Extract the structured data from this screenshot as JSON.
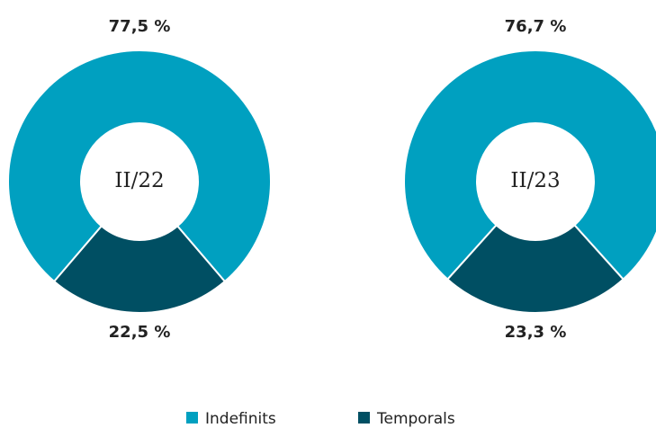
{
  "chart_data": [
    {
      "type": "donut",
      "center_label": "II/22",
      "values": [
        77.5,
        22.5
      ],
      "value_labels": [
        "77,5 %",
        "22,5 %"
      ]
    },
    {
      "type": "donut",
      "center_label": "II/23",
      "values": [
        76.7,
        23.3
      ],
      "value_labels": [
        "76,7 %",
        "23,3 %"
      ]
    }
  ],
  "legend": {
    "names": [
      "Indefinits",
      "Temporals"
    ],
    "colors": [
      "#00a0c0",
      "#004f63"
    ]
  }
}
